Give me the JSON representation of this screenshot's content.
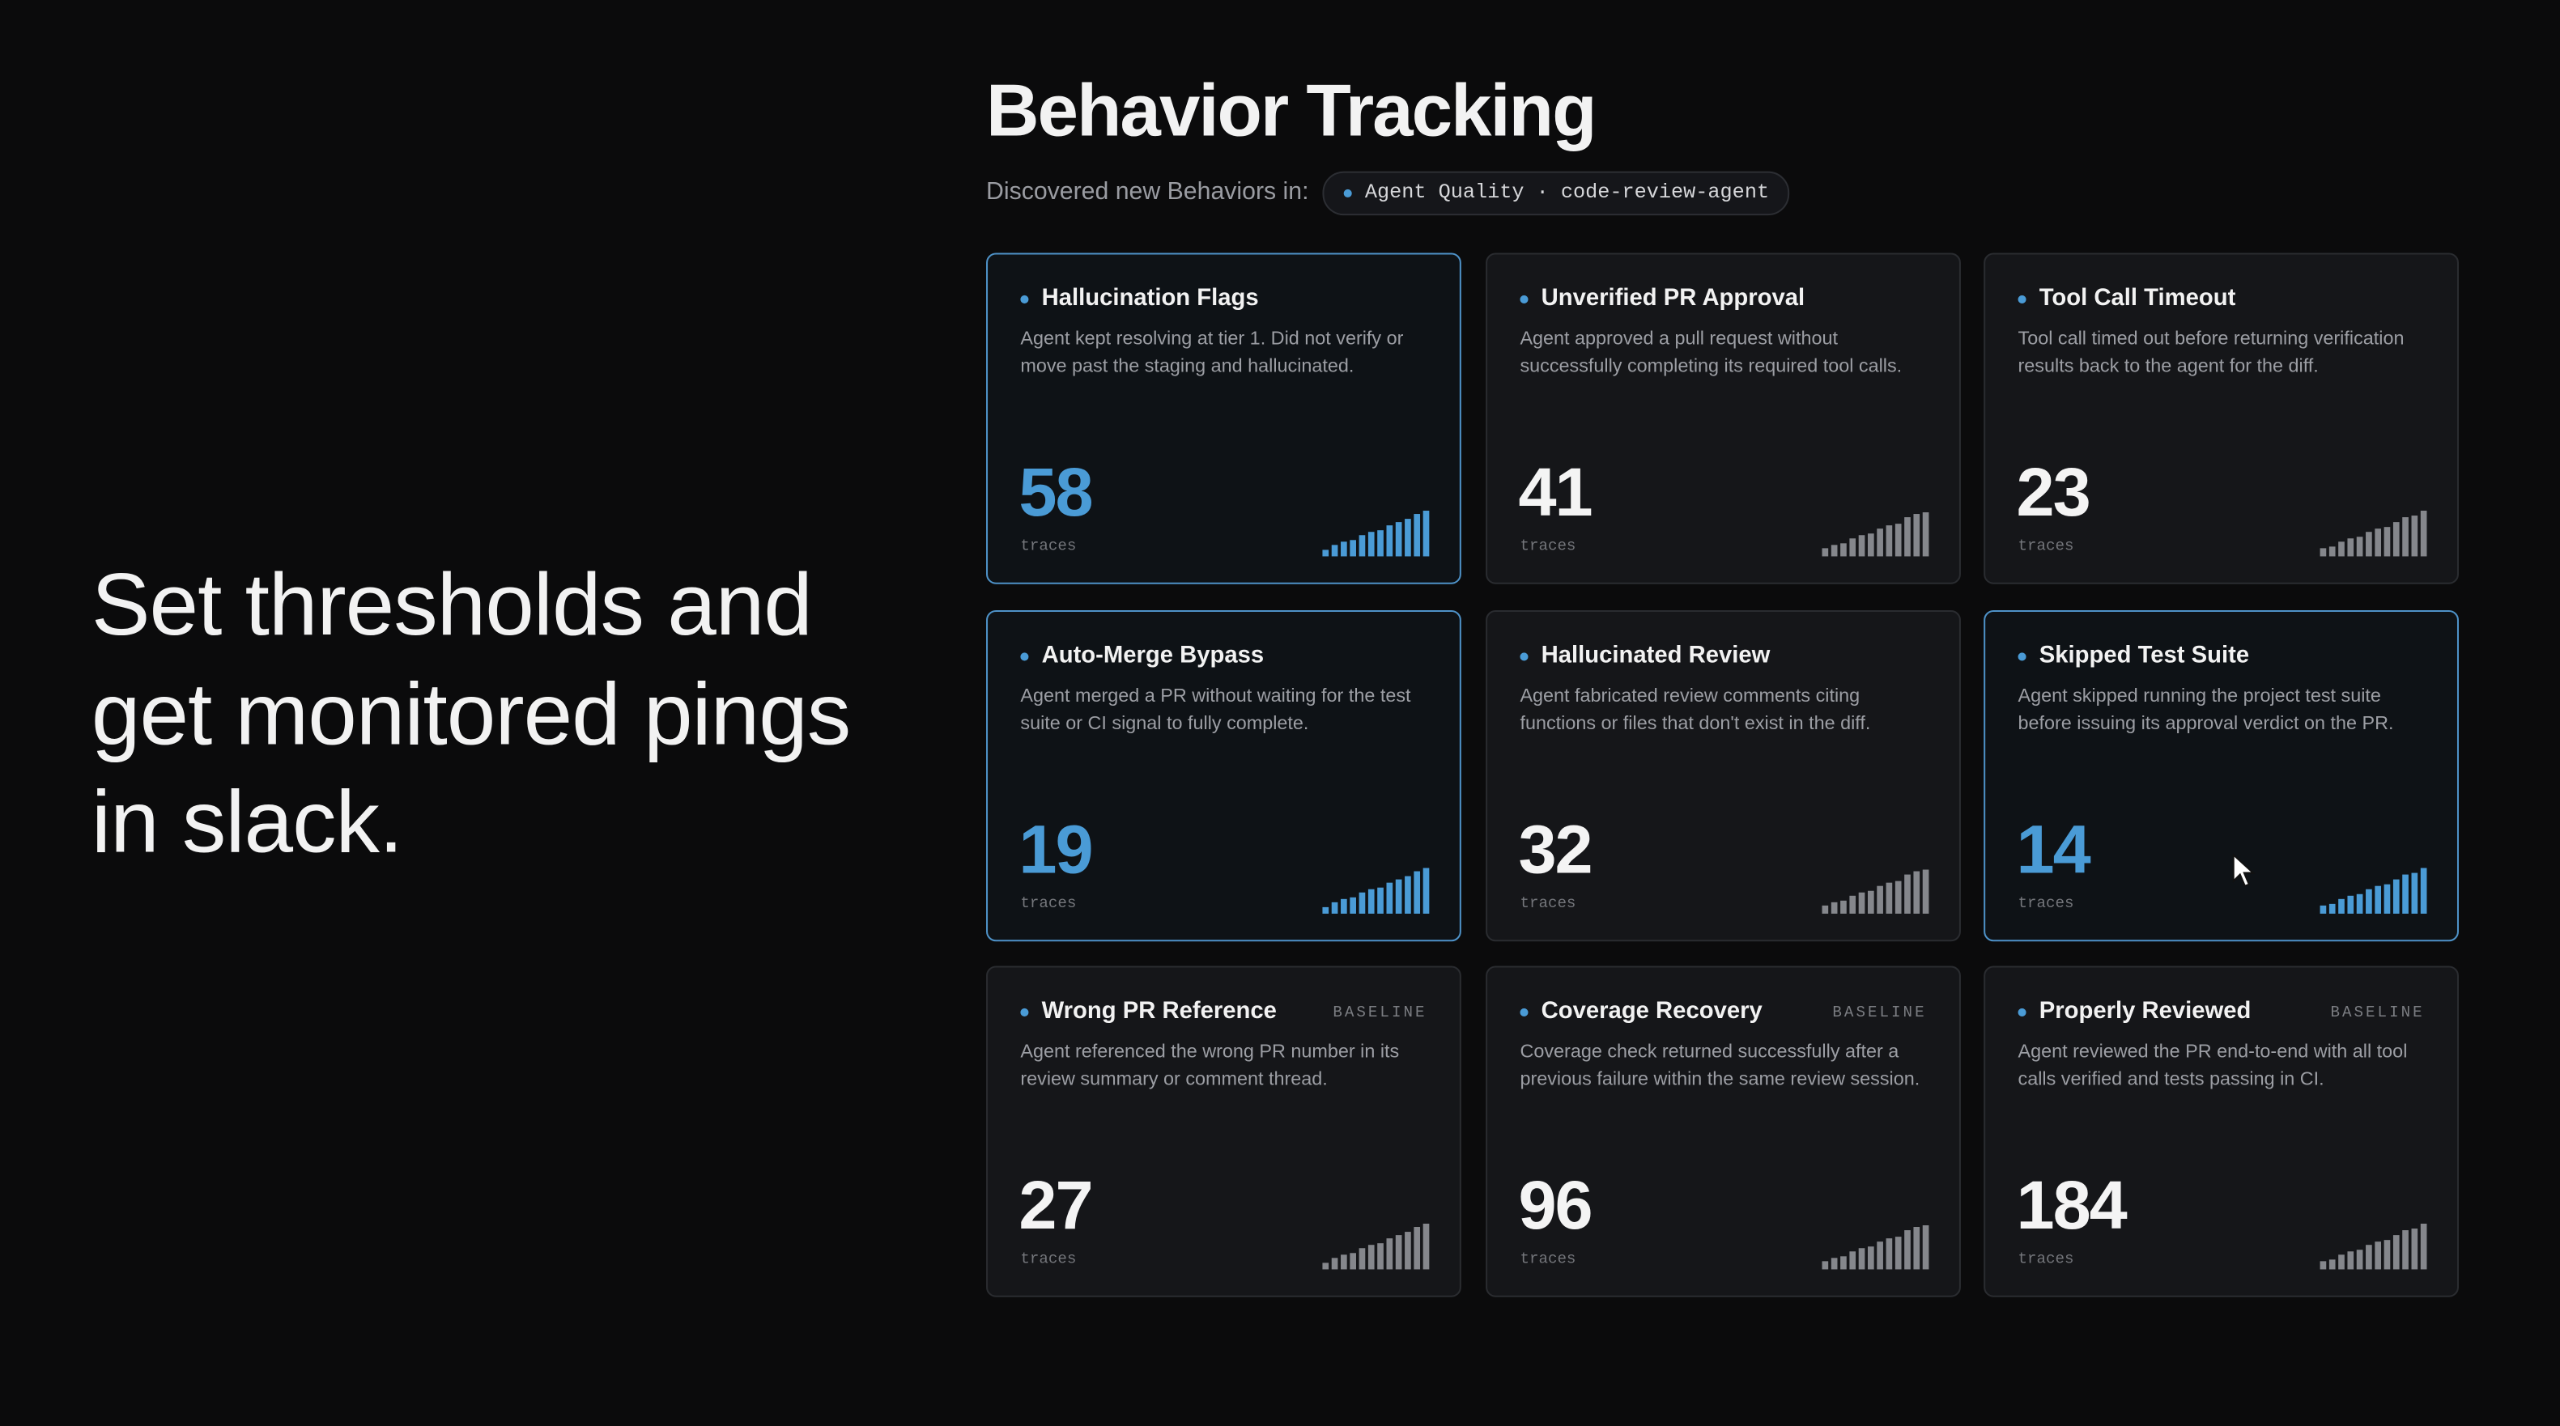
{
  "headline": [
    "Set thresholds and",
    "get monitored pings",
    "in slack."
  ],
  "panel": {
    "title": "Behavior Tracking",
    "subtitle": "Discovered new Behaviors in:",
    "scope": "Agent Quality · code-review-agent",
    "cards": [
      {
        "title": "Hallucination Flags",
        "description": "Agent kept resolving at tier 1. Did not verify or move past the staging and hallucinated.",
        "count": 58,
        "unit": "traces",
        "highlighted": true
      },
      {
        "title": "Unverified PR Approval",
        "description": "Agent approved a pull request without successfully completing its required tool calls.",
        "count": 41,
        "unit": "traces",
        "highlighted": false
      },
      {
        "title": "Tool Call Timeout",
        "description": "Tool call timed out before returning verification results back to the agent for the diff.",
        "count": 23,
        "unit": "traces",
        "highlighted": false
      },
      {
        "title": "Auto-Merge Bypass",
        "description": "Agent merged a PR without waiting for the test suite or CI signal to fully complete.",
        "count": 19,
        "unit": "traces",
        "highlighted": true
      },
      {
        "title": "Hallucinated Review",
        "description": "Agent fabricated review comments citing functions or files that don't exist in the diff.",
        "count": 32,
        "unit": "traces",
        "highlighted": false
      },
      {
        "title": "Skipped Test Suite",
        "description": "Agent skipped running the project test suite before issuing its approval verdict on the PR.",
        "count": 14,
        "unit": "traces",
        "highlighted": true
      },
      {
        "title": "Wrong PR Reference",
        "tag": "BASELINE",
        "description": "Agent referenced the wrong PR number in its review summary or comment thread.",
        "count": 27,
        "unit": "traces",
        "highlighted": false
      },
      {
        "title": "Coverage Recovery",
        "tag": "BASELINE",
        "description": "Coverage check returned successfully after a previous failure within the same review session.",
        "count": 96,
        "unit": "traces",
        "highlighted": false
      },
      {
        "title": "Properly Reviewed",
        "tag": "BASELINE",
        "description": "Agent reviewed the PR end-to-end with all tool calls verified and tests passing in CI.",
        "count": 184,
        "unit": "traces",
        "highlighted": false
      }
    ]
  }
}
